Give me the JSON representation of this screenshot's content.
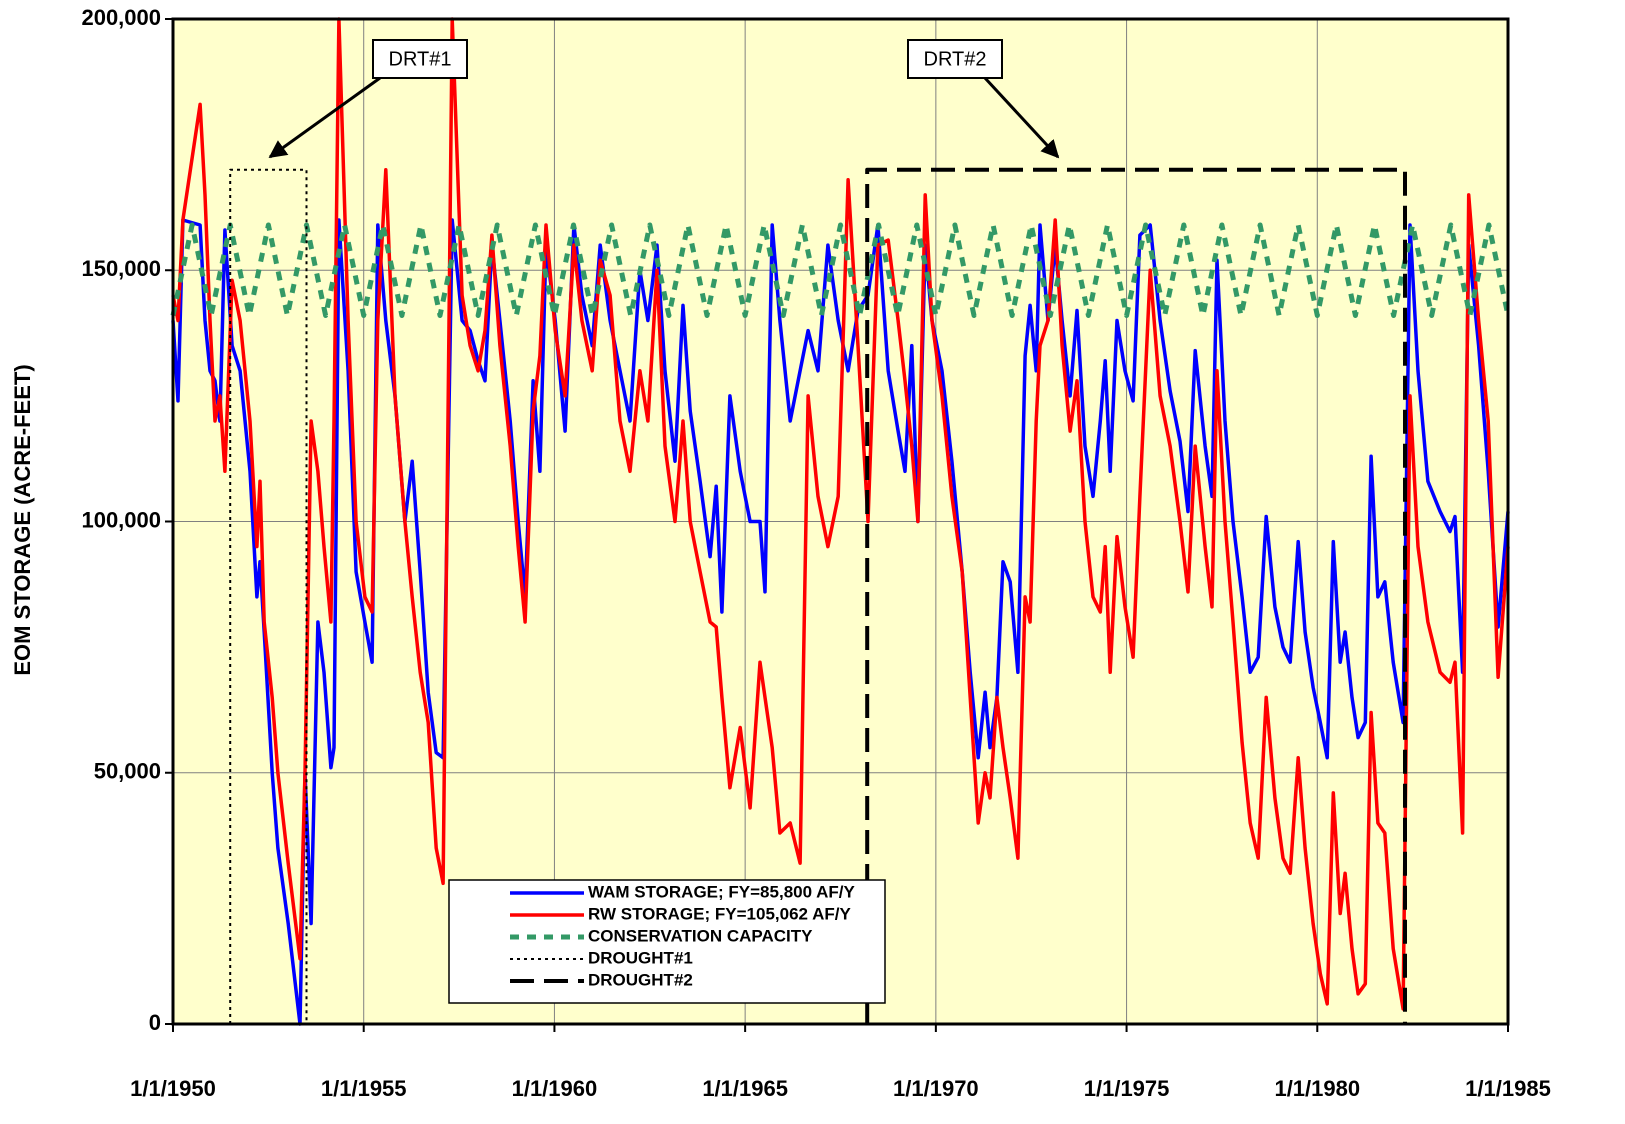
{
  "chart_data": {
    "type": "line",
    "y_label": "EOM STORAGE (ACRE-FEET)",
    "xlim": [
      1950,
      1985
    ],
    "xticks": [
      {
        "value": 1950,
        "label": "1/1/1950"
      },
      {
        "value": 1955,
        "label": "1/1/1955"
      },
      {
        "value": 1960,
        "label": "1/1/1960"
      },
      {
        "value": 1965,
        "label": "1/1/1965"
      },
      {
        "value": 1970,
        "label": "1/1/1970"
      },
      {
        "value": 1975,
        "label": "1/1/1975"
      },
      {
        "value": 1980,
        "label": "1/1/1980"
      },
      {
        "value": 1985,
        "label": "1/1/1985"
      }
    ],
    "ylim": [
      0,
      200000
    ],
    "yticks": [
      0,
      {
        "value": 50000,
        "label": "50,000"
      },
      {
        "value": 100000,
        "label": "100,000"
      },
      {
        "value": 150000,
        "label": "150,000"
      },
      {
        "value": 200000,
        "label": "200,000"
      }
    ],
    "grid": true,
    "background": "#ffffcc",
    "legend": "lower center",
    "annotations": [
      {
        "text": "DRT#1"
      },
      {
        "text": "DRT#2"
      }
    ],
    "series": [
      {
        "name": "WAM STORAGE; FY=85,800 AF/Y",
        "color": "#0000ff",
        "style": "solid",
        "x": [
          1950.0,
          1950.13,
          1950.26,
          1950.71,
          1950.84,
          1950.97,
          1951.1,
          1951.23,
          1951.36,
          1951.55,
          1951.76,
          1952.02,
          1952.2,
          1952.28,
          1952.39,
          1952.6,
          1952.75,
          1953.02,
          1953.33,
          1953.46,
          1953.62,
          1953.8,
          1953.96,
          1954.14,
          1954.22,
          1954.35,
          1954.59,
          1954.8,
          1955.03,
          1955.22,
          1955.37,
          1955.58,
          1955.82,
          1956.08,
          1956.27,
          1956.48,
          1956.69,
          1956.9,
          1957.08,
          1957.32,
          1957.58,
          1957.79,
          1958.0,
          1958.18,
          1958.36,
          1958.57,
          1958.84,
          1959.05,
          1959.23,
          1959.44,
          1959.62,
          1959.78,
          1960.02,
          1960.28,
          1960.51,
          1960.72,
          1960.99,
          1961.2,
          1961.46,
          1961.72,
          1961.98,
          1962.24,
          1962.45,
          1962.69,
          1962.9,
          1963.16,
          1963.37,
          1963.56,
          1963.82,
          1964.08,
          1964.24,
          1964.39,
          1964.6,
          1964.87,
          1965.13,
          1965.39,
          1965.52,
          1965.71,
          1965.91,
          1966.18,
          1966.44,
          1966.65,
          1966.91,
          1967.17,
          1967.44,
          1967.7,
          1967.96,
          1968.22,
          1968.48,
          1968.75,
          1969.01,
          1969.19,
          1969.37,
          1969.53,
          1969.72,
          1969.9,
          1970.16,
          1970.42,
          1970.69,
          1970.9,
          1971.11,
          1971.29,
          1971.42,
          1971.6,
          1971.76,
          1971.95,
          1972.15,
          1972.34,
          1972.47,
          1972.63,
          1972.73,
          1972.94,
          1973.13,
          1973.31,
          1973.52,
          1973.7,
          1973.91,
          1974.12,
          1974.31,
          1974.44,
          1974.57,
          1974.75,
          1974.96,
          1975.17,
          1975.35,
          1975.62,
          1975.88,
          1976.14,
          1976.4,
          1976.61,
          1976.8,
          1977.06,
          1977.24,
          1977.37,
          1977.58,
          1977.79,
          1978.03,
          1978.24,
          1978.45,
          1978.66,
          1978.89,
          1979.1,
          1979.29,
          1979.5,
          1979.68,
          1979.89,
          1980.08,
          1980.26,
          1980.42,
          1980.6,
          1980.73,
          1980.91,
          1981.07,
          1981.26,
          1981.41,
          1981.59,
          1981.77,
          1981.99,
          1982.25,
          1982.43,
          1982.64,
          1982.9,
          1983.22,
          1983.48,
          1983.61,
          1983.81,
          1983.97,
          1984.23,
          1984.48,
          1984.74,
          1985.0
        ],
        "values": [
          140000,
          124000,
          160000,
          159000,
          140000,
          130000,
          128000,
          120000,
          158000,
          135000,
          130000,
          110000,
          85000,
          92000,
          78000,
          50000,
          35000,
          20000,
          0,
          50000,
          20000,
          80000,
          70000,
          51000,
          55000,
          160000,
          130000,
          90000,
          80000,
          72000,
          159000,
          140000,
          125000,
          100000,
          112000,
          90000,
          66000,
          54000,
          53000,
          160000,
          140000,
          138000,
          132000,
          128000,
          155000,
          140000,
          120000,
          100000,
          85000,
          128000,
          110000,
          155000,
          140000,
          118000,
          159000,
          145000,
          135000,
          155000,
          140000,
          130000,
          120000,
          150000,
          140000,
          155000,
          130000,
          112000,
          143000,
          122000,
          108000,
          93000,
          107000,
          82000,
          125000,
          110000,
          100000,
          100000,
          86000,
          159000,
          140000,
          120000,
          130000,
          138000,
          130000,
          155000,
          140000,
          130000,
          142000,
          145000,
          159000,
          130000,
          118000,
          110000,
          135000,
          100000,
          155000,
          140000,
          130000,
          112000,
          90000,
          70000,
          53000,
          66000,
          55000,
          65000,
          92000,
          88000,
          70000,
          133000,
          143000,
          130000,
          159000,
          140000,
          155000,
          140000,
          125000,
          142000,
          115000,
          105000,
          120000,
          132000,
          110000,
          140000,
          130000,
          124000,
          157000,
          159000,
          140000,
          126000,
          116000,
          102000,
          134000,
          115000,
          105000,
          152000,
          120000,
          100000,
          85000,
          70000,
          73000,
          101000,
          83000,
          75000,
          72000,
          96000,
          78000,
          67000,
          60000,
          53000,
          96000,
          72000,
          78000,
          65000,
          57000,
          60000,
          113000,
          85000,
          88000,
          72000,
          60000,
          159000,
          130000,
          108000,
          102000,
          98000,
          101000,
          70000,
          155000,
          135000,
          110000,
          79000,
          102000
        ]
      },
      {
        "name": "RW STORAGE; FY=105,062 AF/Y",
        "color": "#ff0000",
        "style": "solid",
        "x": [
          1950.0,
          1950.13,
          1950.26,
          1950.71,
          1950.84,
          1950.97,
          1951.1,
          1951.23,
          1951.36,
          1951.55,
          1951.76,
          1952.02,
          1952.2,
          1952.28,
          1952.39,
          1952.6,
          1952.75,
          1953.02,
          1953.33,
          1953.46,
          1953.62,
          1953.8,
          1953.96,
          1954.14,
          1954.22,
          1954.35,
          1954.59,
          1954.8,
          1955.03,
          1955.22,
          1955.37,
          1955.58,
          1955.82,
          1956.08,
          1956.27,
          1956.48,
          1956.69,
          1956.9,
          1957.08,
          1957.32,
          1957.58,
          1957.79,
          1958.0,
          1958.18,
          1958.36,
          1958.57,
          1958.84,
          1959.05,
          1959.23,
          1959.44,
          1959.62,
          1959.78,
          1960.02,
          1960.28,
          1960.51,
          1960.72,
          1960.99,
          1961.2,
          1961.46,
          1961.72,
          1961.98,
          1962.24,
          1962.45,
          1962.69,
          1962.9,
          1963.16,
          1963.37,
          1963.56,
          1963.82,
          1964.08,
          1964.24,
          1964.39,
          1964.6,
          1964.87,
          1965.13,
          1965.39,
          1965.52,
          1965.71,
          1965.91,
          1966.18,
          1966.44,
          1966.65,
          1966.91,
          1967.17,
          1967.44,
          1967.7,
          1967.96,
          1968.22,
          1968.48,
          1968.75,
          1969.01,
          1969.19,
          1969.37,
          1969.53,
          1969.72,
          1969.9,
          1970.16,
          1970.42,
          1970.69,
          1970.9,
          1971.11,
          1971.29,
          1971.42,
          1971.6,
          1971.76,
          1971.95,
          1972.15,
          1972.34,
          1972.47,
          1972.63,
          1972.73,
          1972.94,
          1973.13,
          1973.31,
          1973.52,
          1973.7,
          1973.91,
          1974.12,
          1974.31,
          1974.44,
          1974.57,
          1974.75,
          1974.96,
          1975.17,
          1975.35,
          1975.62,
          1975.88,
          1976.14,
          1976.4,
          1976.61,
          1976.8,
          1977.06,
          1977.24,
          1977.37,
          1977.58,
          1977.79,
          1978.03,
          1978.24,
          1978.45,
          1978.66,
          1978.89,
          1979.1,
          1979.29,
          1979.5,
          1979.68,
          1979.89,
          1980.08,
          1980.26,
          1980.42,
          1980.6,
          1980.73,
          1980.91,
          1981.07,
          1981.26,
          1981.41,
          1981.59,
          1981.77,
          1981.99,
          1982.25,
          1982.43,
          1982.64,
          1982.9,
          1983.22,
          1983.48,
          1983.61,
          1983.81,
          1983.97,
          1984.23,
          1984.48,
          1984.74,
          1985.0
        ],
        "values": [
          145000,
          140000,
          160000,
          183000,
          165000,
          140000,
          120000,
          125000,
          110000,
          148000,
          140000,
          120000,
          95000,
          108000,
          80000,
          65000,
          50000,
          32000,
          13000,
          50000,
          120000,
          110000,
          95000,
          80000,
          120000,
          200000,
          140000,
          100000,
          85000,
          82000,
          140000,
          170000,
          125000,
          100000,
          85000,
          70000,
          60000,
          35000,
          28000,
          200000,
          145000,
          135000,
          130000,
          138000,
          157000,
          135000,
          115000,
          95000,
          80000,
          122000,
          133000,
          159000,
          138000,
          125000,
          155000,
          140000,
          130000,
          152000,
          145000,
          120000,
          110000,
          130000,
          120000,
          150000,
          115000,
          100000,
          120000,
          100000,
          90000,
          80000,
          79000,
          65000,
          47000,
          59000,
          43000,
          72000,
          65000,
          55000,
          38000,
          40000,
          32000,
          125000,
          105000,
          95000,
          105000,
          168000,
          135000,
          100000,
          155000,
          156000,
          140000,
          128000,
          115000,
          100000,
          165000,
          140000,
          125000,
          105000,
          90000,
          65000,
          40000,
          50000,
          45000,
          65000,
          55000,
          45000,
          33000,
          85000,
          80000,
          120000,
          135000,
          140000,
          160000,
          135000,
          118000,
          128000,
          100000,
          85000,
          82000,
          95000,
          70000,
          97000,
          83000,
          73000,
          105000,
          150000,
          125000,
          115000,
          100000,
          86000,
          115000,
          95000,
          83000,
          130000,
          100000,
          80000,
          56000,
          40000,
          33000,
          65000,
          45000,
          33000,
          30000,
          53000,
          35000,
          20000,
          10000,
          4000,
          46000,
          22000,
          30000,
          15000,
          6000,
          8000,
          62000,
          40000,
          38000,
          15000,
          3000,
          125000,
          95000,
          80000,
          70000,
          68000,
          72000,
          38000,
          165000,
          140000,
          120000,
          69000,
          95000
        ]
      },
      {
        "name": "CONSERVATION CAPACITY",
        "color": "#339966",
        "style": "dashed-thick",
        "x": [
          1950.0,
          1950.5,
          1951.0,
          1951.5,
          1952.0,
          1952.5,
          1953.0,
          1953.5,
          1954.0,
          1954.5,
          1955.0,
          1955.5,
          1956.0,
          1956.5,
          1957.0,
          1957.5,
          1958.0,
          1958.5,
          1959.0,
          1959.5,
          1960.0,
          1960.5,
          1961.0,
          1961.5,
          1962.0,
          1962.5,
          1963.0,
          1963.5,
          1964.0,
          1964.5,
          1965.0,
          1965.5,
          1966.0,
          1966.5,
          1967.0,
          1967.5,
          1968.0,
          1968.5,
          1969.0,
          1969.5,
          1970.0,
          1970.5,
          1971.0,
          1971.5,
          1972.0,
          1972.5,
          1973.0,
          1973.5,
          1974.0,
          1974.5,
          1975.0,
          1975.5,
          1976.0,
          1976.5,
          1977.0,
          1977.5,
          1978.0,
          1978.5,
          1979.0,
          1979.5,
          1980.0,
          1980.5,
          1981.0,
          1981.5,
          1982.0,
          1982.5,
          1983.0,
          1983.5,
          1984.0,
          1984.5,
          1985.0
        ],
        "values": [
          141000,
          159000,
          141000,
          159000,
          141000,
          159000,
          141000,
          159000,
          141000,
          159000,
          141000,
          159000,
          141000,
          159000,
          141000,
          159000,
          141000,
          159000,
          141000,
          159000,
          141000,
          159000,
          141000,
          159000,
          141000,
          159000,
          141000,
          159000,
          141000,
          159000,
          141000,
          159000,
          141000,
          159000,
          141000,
          159000,
          141000,
          159000,
          141000,
          159000,
          141000,
          159000,
          141000,
          159000,
          141000,
          159000,
          141000,
          159000,
          141000,
          159000,
          141000,
          159000,
          141000,
          159000,
          141000,
          159000,
          141000,
          159000,
          141000,
          159000,
          141000,
          159000,
          141000,
          159000,
          141000,
          159000,
          141000,
          159000,
          141000,
          159000,
          141000
        ]
      },
      {
        "name": "DROUGHT#1",
        "color": "#000000",
        "style": "dotted",
        "x": [
          1951.5,
          1951.5,
          1953.5,
          1953.5
        ],
        "values": [
          0,
          170000,
          170000,
          0
        ]
      },
      {
        "name": "DROUGHT#2",
        "color": "#000000",
        "style": "dashed",
        "x": [
          1968.2,
          1968.2,
          1982.3,
          1982.3
        ],
        "values": [
          0,
          170000,
          170000,
          0
        ]
      }
    ]
  }
}
